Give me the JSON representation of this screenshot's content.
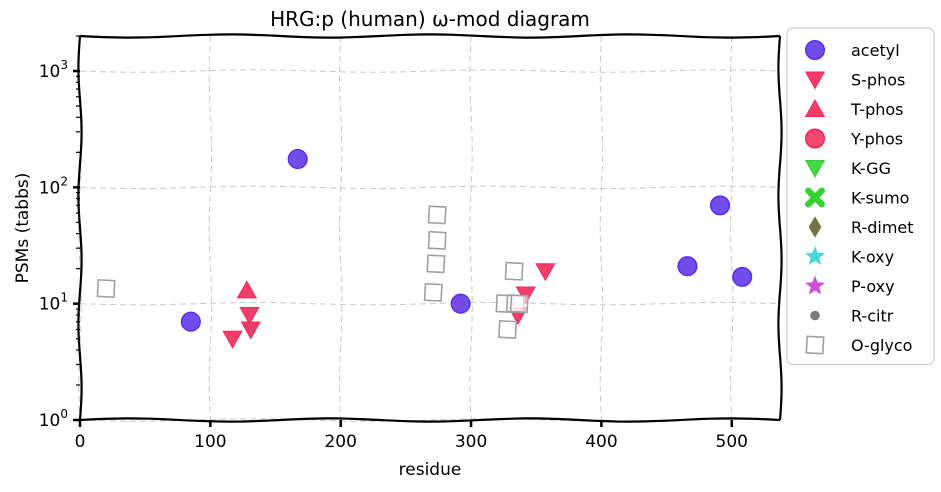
{
  "chart_data": {
    "type": "scatter",
    "title": "HRG:p (human) ω-mod diagram",
    "xlabel": "residue",
    "ylabel": "PSMs (tabbs)",
    "xlim": [
      0,
      537
    ],
    "ylim": [
      1,
      2000
    ],
    "yscale": "log",
    "grid": true,
    "legend_position": "right-outside",
    "x_ticks": [
      0,
      100,
      200,
      300,
      400,
      500
    ],
    "x_tick_labels": [
      "0",
      "100",
      "200",
      "300",
      "400",
      "500"
    ],
    "y_ticks": [
      1,
      10,
      100,
      1000
    ],
    "y_tick_labels": [
      "10^0",
      "10^1",
      "10^2",
      "10^3"
    ],
    "series": [
      {
        "name": "acetyl",
        "marker": "circle",
        "color": "#5a2ee6",
        "x": [
          85,
          167,
          292,
          466,
          491,
          508
        ],
        "y": [
          7,
          175,
          10,
          21,
          70,
          17
        ]
      },
      {
        "name": "S-phos",
        "marker": "triangle-down",
        "color": "#f0285a",
        "x": [
          117,
          130,
          131,
          336,
          342,
          357
        ],
        "y": [
          5,
          8,
          6,
          8,
          12,
          19
        ]
      },
      {
        "name": "T-phos",
        "marker": "triangle-up",
        "color": "#f0285a",
        "x": [
          128
        ],
        "y": [
          13
        ]
      },
      {
        "name": "Y-phos",
        "marker": "circle",
        "color": "#f0285a",
        "x": [],
        "y": []
      },
      {
        "name": "K-GG",
        "marker": "triangle-down",
        "color": "#32d232",
        "x": [],
        "y": []
      },
      {
        "name": "K-sumo",
        "marker": "x",
        "color": "#32d232",
        "x": [],
        "y": []
      },
      {
        "name": "R-dimet",
        "marker": "diamond",
        "color": "#6b6b37",
        "x": [],
        "y": []
      },
      {
        "name": "K-oxy",
        "marker": "star",
        "color": "#32d2d2",
        "x": [],
        "y": []
      },
      {
        "name": "P-oxy",
        "marker": "star",
        "color": "#c83cd2",
        "x": [],
        "y": []
      },
      {
        "name": "R-citr",
        "marker": "small-circle",
        "color": "#6e6e6e",
        "x": [],
        "y": []
      },
      {
        "name": "O-glyco",
        "marker": "square-open",
        "color": "#a0a0a0",
        "x": [
          20,
          271,
          273,
          274,
          274,
          326,
          328,
          333,
          334,
          337
        ],
        "y": [
          13.5,
          12.5,
          22,
          35,
          58,
          10,
          6,
          19,
          10,
          10
        ]
      }
    ]
  }
}
